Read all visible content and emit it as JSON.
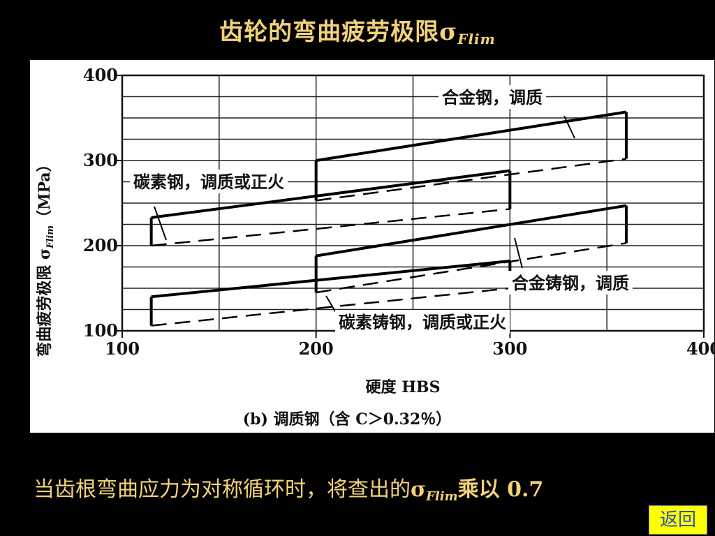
{
  "slide": {
    "title_main": "齿轮的弯曲疲劳极限σ",
    "title_sub": "Flim",
    "footer_main": "当齿根弯曲应力为对称循环时，将查出的",
    "footer_sigma": "σ",
    "footer_sub": "Flim",
    "footer_mult": "乘以",
    "footer_num": " 0.7",
    "back_label": "返回",
    "back_color": "#ffff00"
  },
  "chart_data": {
    "type": "line",
    "title": "",
    "xlabel": "硬度 HBS",
    "ylabel_main": "弯曲疲劳极限 σ",
    "ylabel_sub": "Flim",
    "ylabel_unit": "（MPa）",
    "caption": "(b) 调质钢（含 C＞0.32％）",
    "xlim": [
      100,
      400
    ],
    "ylim": [
      100,
      400
    ],
    "xticks": [
      "100",
      "200",
      "300",
      "400"
    ],
    "yticks": [
      "100",
      "200",
      "300",
      "400"
    ],
    "grid": true,
    "regions": [
      {
        "name": "合金钢，调质",
        "upper": [
          [
            200,
            300
          ],
          [
            360,
            357
          ]
        ],
        "lower": [
          [
            200,
            253
          ],
          [
            360,
            302
          ]
        ],
        "verticals": [
          200,
          360
        ]
      },
      {
        "name": "碳素钢，调质或正火",
        "upper": [
          [
            115,
            233
          ],
          [
            300,
            288
          ]
        ],
        "lower": [
          [
            115,
            200
          ],
          [
            300,
            243
          ]
        ],
        "verticals": [
          115,
          300
        ]
      },
      {
        "name": "合金铸钢，调质",
        "upper": [
          [
            200,
            188
          ],
          [
            360,
            247
          ]
        ],
        "lower": [
          [
            200,
            145
          ],
          [
            360,
            203
          ]
        ],
        "verticals": [
          200,
          360
        ]
      },
      {
        "name": "碳素铸钢，调质或正火",
        "upper": [
          [
            115,
            140
          ],
          [
            300,
            182
          ]
        ],
        "lower": [
          [
            115,
            106
          ],
          [
            300,
            150
          ]
        ],
        "verticals": [
          115,
          300
        ]
      }
    ]
  }
}
